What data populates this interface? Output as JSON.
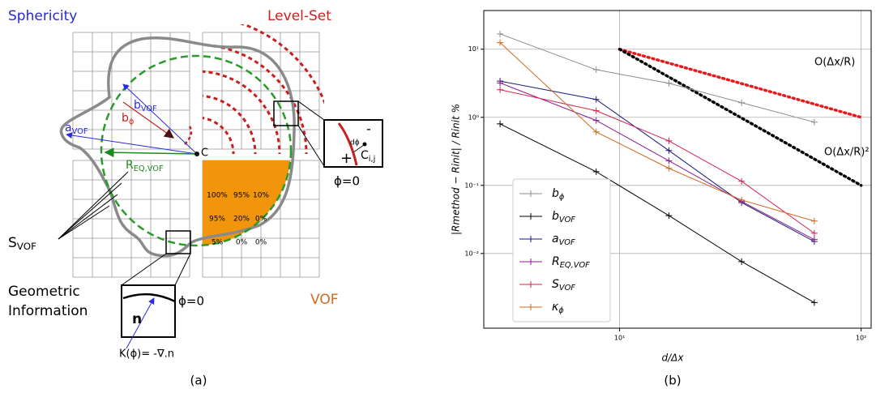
{
  "diagram": {
    "sphericity": "Sphericity",
    "level_set": "Level-Set",
    "vof": "VOF",
    "b_vof": "bVOF",
    "b_phi": "bϕ",
    "a_vof": "aVOF",
    "center": "C",
    "r_eq": "REQ,VOF",
    "s_vof": "SVOF",
    "geometric": [
      "Geometric",
      "Information"
    ],
    "normal": "n",
    "phi_zero_bottom": "ϕ=0",
    "curvature": "K(ϕ)= -∇.n",
    "zoom_minus": "-",
    "zoom_plus": "+",
    "zoom_dphi": "dϕ",
    "zoom_cell": "Ci,j",
    "phi_zero_right": "ϕ=0",
    "fractions": [
      [
        "100%",
        "95%",
        "10%"
      ],
      [
        "95%",
        "20%",
        "0%"
      ],
      [
        "5%",
        "0%",
        "0%"
      ]
    ],
    "panel": "(a)"
  },
  "chart_data": {
    "type": "line",
    "panel": "(b)",
    "x_label": "d/Δx",
    "y_label": "|Rmethod − Rinit| / Rinit %",
    "x": [
      3.2,
      8,
      16,
      32,
      64
    ],
    "series": [
      {
        "name": "bϕ",
        "color": "#8c8c8c",
        "values": [
          16.8,
          5.0,
          3.16,
          1.64,
          0.85
        ]
      },
      {
        "name": "bVOF",
        "color": "#000000",
        "values": [
          0.8,
          0.159,
          0.036,
          0.0076,
          0.0019
        ]
      },
      {
        "name": "aVOF",
        "color": "#1a1a7a",
        "values": [
          3.4,
          1.83,
          0.325,
          0.056,
          0.015
        ]
      },
      {
        "name": "REQ,VOF",
        "color": "#8b1a8b",
        "values": [
          3.2,
          0.9,
          0.23,
          0.058,
          0.016
        ]
      },
      {
        "name": "SVOF",
        "color": "#d6224f",
        "values": [
          2.54,
          1.25,
          0.45,
          0.115,
          0.0198
        ]
      },
      {
        "name": "κϕ",
        "color": "#d2691e",
        "values": [
          12.5,
          0.61,
          0.178,
          0.061,
          0.03
        ]
      }
    ],
    "reference_lines": [
      {
        "label": "O(Δx/R)",
        "color": "#e8191c",
        "x": [
          10,
          100
        ],
        "values": [
          10,
          1
        ]
      },
      {
        "label": "O(Δx/R)²",
        "color": "#000000",
        "x": [
          10,
          100
        ],
        "values": [
          10,
          0.1
        ]
      }
    ],
    "xlog": true,
    "ylog": true,
    "xlim": [
      2.74,
      110
    ],
    "ylim": [
      0.0008,
      37
    ],
    "xticks": [
      {
        "value": 10,
        "label": "10¹"
      },
      {
        "value": 100,
        "label": "10²"
      }
    ],
    "yticks": [
      {
        "value": 0.01,
        "label": "10⁻²"
      },
      {
        "value": 0.1,
        "label": "10⁻¹"
      },
      {
        "value": 1,
        "label": "10⁰"
      },
      {
        "value": 10,
        "label": "10¹"
      }
    ],
    "grid": true,
    "legend": "lower left"
  }
}
